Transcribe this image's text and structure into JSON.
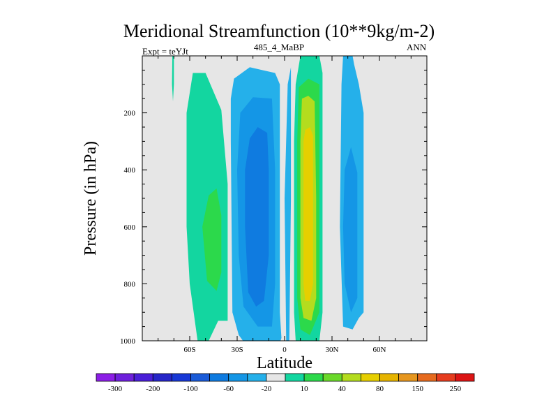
{
  "chart_data": {
    "type": "heatmap",
    "title": "Meridional Streamfunction (10**9kg/m-2)",
    "left_string": "Expt = teYJt",
    "center_string": "485_4_MaBP",
    "right_string": "ANN",
    "xlabel": "Latitude",
    "ylabel": "Pressure (in hPa)",
    "xlim": [
      -90,
      90
    ],
    "ylim": [
      1000,
      0
    ],
    "x_ticks": [
      {
        "value": -60,
        "label": "60S"
      },
      {
        "value": -30,
        "label": "30S"
      },
      {
        "value": 0,
        "label": "0"
      },
      {
        "value": 30,
        "label": "30N"
      },
      {
        "value": 60,
        "label": "60N"
      }
    ],
    "y_ticks": [
      {
        "value": 200,
        "label": "200"
      },
      {
        "value": 400,
        "label": "400"
      },
      {
        "value": 600,
        "label": "600"
      },
      {
        "value": 800,
        "label": "800"
      },
      {
        "value": 1000,
        "label": "1000"
      }
    ],
    "colorbar": {
      "colors": [
        "#8c1ee6",
        "#6e20dc",
        "#4a1fd8",
        "#2626c8",
        "#1838d6",
        "#1a5bd8",
        "#0f7be0",
        "#1496e6",
        "#25b0ea",
        "#e6e6e6",
        "#13d6a0",
        "#2cd94b",
        "#6ad92a",
        "#b4dc1e",
        "#e6cf00",
        "#e6b400",
        "#e6961e",
        "#e66a1e",
        "#e63c1e",
        "#dc1414"
      ],
      "labels": [
        "-300",
        "-200",
        "-100",
        "-60",
        "-20",
        "10",
        "40",
        "80",
        "150",
        "250"
      ]
    },
    "regions": [
      {
        "level": 10,
        "color": "#13d6a0",
        "name": "sh-positive-cell-edge",
        "points": [
          [
            -50,
            60
          ],
          [
            -40,
            190
          ],
          [
            -36,
            450
          ],
          [
            -36,
            930
          ],
          [
            -42,
            930
          ],
          [
            -48,
            1000
          ],
          [
            -55,
            1000
          ],
          [
            -60,
            800
          ],
          [
            -62,
            600
          ],
          [
            -62,
            200
          ],
          [
            -58,
            60
          ]
        ]
      },
      {
        "level": 40,
        "color": "#2cd94b",
        "name": "sh-positive-cell-core",
        "points": [
          [
            -43,
            465
          ],
          [
            -40,
            560
          ],
          [
            -40,
            760
          ],
          [
            -43,
            825
          ],
          [
            -49,
            790
          ],
          [
            -52,
            600
          ],
          [
            -48,
            490
          ]
        ]
      },
      {
        "level": -20,
        "color": "#25b0ea",
        "name": "sh-negative-cell-edge",
        "points": [
          [
            -32,
            80
          ],
          [
            -22,
            40
          ],
          [
            -6,
            60
          ],
          [
            -3,
            100
          ],
          [
            -3,
            900
          ],
          [
            -2,
            990
          ],
          [
            -4,
            1030
          ],
          [
            -15,
            1030
          ],
          [
            -25,
            1010
          ],
          [
            -29,
            980
          ],
          [
            -33,
            900
          ],
          [
            -34,
            300
          ],
          [
            -34,
            150
          ]
        ]
      },
      {
        "level": -60,
        "color": "#1496e6",
        "name": "sh-negative-cell-mid",
        "points": [
          [
            -28,
            200
          ],
          [
            -20,
            145
          ],
          [
            -8,
            150
          ],
          [
            -6,
            400
          ],
          [
            -6,
            800
          ],
          [
            -8,
            950
          ],
          [
            -17,
            950
          ],
          [
            -26,
            880
          ],
          [
            -29,
            700
          ],
          [
            -30,
            400
          ]
        ]
      },
      {
        "level": -100,
        "color": "#0f7be0",
        "name": "sh-negative-cell-core",
        "points": [
          [
            -22,
            290
          ],
          [
            -17,
            250
          ],
          [
            -11,
            270
          ],
          [
            -10,
            400
          ],
          [
            -10,
            700
          ],
          [
            -13,
            860
          ],
          [
            -18,
            880
          ],
          [
            -23,
            830
          ],
          [
            -25,
            600
          ],
          [
            -25,
            400
          ]
        ]
      },
      {
        "level": -20,
        "color": "#25b0ea",
        "name": "equatorial-negative-strip",
        "points": [
          [
            2,
            100
          ],
          [
            4,
            40
          ],
          [
            4,
            500
          ],
          [
            3,
            1000
          ],
          [
            1,
            1000
          ],
          [
            0,
            500
          ]
        ]
      },
      {
        "level": 10,
        "color": "#13d6a0",
        "name": "nh-positive-cell-edge",
        "points": [
          [
            7,
            100
          ],
          [
            10,
            0
          ],
          [
            22,
            0
          ],
          [
            24,
            60
          ],
          [
            24,
            300
          ],
          [
            24,
            900
          ],
          [
            22,
            1000
          ],
          [
            18,
            1020
          ],
          [
            9,
            1020
          ],
          [
            7,
            1000
          ],
          [
            6,
            900
          ],
          [
            6,
            300
          ]
        ]
      },
      {
        "level": 40,
        "color": "#2cd94b",
        "name": "nh-positive-cell-mid",
        "points": [
          [
            9,
            110
          ],
          [
            15,
            80
          ],
          [
            22,
            100
          ],
          [
            22,
            500
          ],
          [
            22,
            900
          ],
          [
            16,
            980
          ],
          [
            10,
            960
          ],
          [
            8,
            850
          ],
          [
            8,
            300
          ]
        ]
      },
      {
        "level": 80,
        "color": "#b4dc1e",
        "name": "nh-positive-cell-inner",
        "points": [
          [
            11,
            150
          ],
          [
            15,
            140
          ],
          [
            19,
            160
          ],
          [
            20,
            500
          ],
          [
            20,
            850
          ],
          [
            17,
            930
          ],
          [
            12,
            920
          ],
          [
            10,
            850
          ],
          [
            10,
            300
          ]
        ]
      },
      {
        "level": 150,
        "color": "#e6cf00",
        "name": "nh-positive-cell-core",
        "points": [
          [
            13,
            260
          ],
          [
            16,
            250
          ],
          [
            18,
            280
          ],
          [
            18,
            500
          ],
          [
            18,
            800
          ],
          [
            16,
            860
          ],
          [
            13,
            860
          ],
          [
            12,
            800
          ],
          [
            12,
            300
          ]
        ]
      },
      {
        "level": -20,
        "color": "#25b0ea",
        "name": "nh-negative-cell-edge",
        "points": [
          [
            37,
            0
          ],
          [
            43,
            0
          ],
          [
            44,
            30
          ],
          [
            47,
            100
          ],
          [
            50,
            200
          ],
          [
            50,
            500
          ],
          [
            50,
            900
          ],
          [
            47,
            920
          ],
          [
            43,
            960
          ],
          [
            37,
            950
          ],
          [
            35,
            600
          ],
          [
            36,
            100
          ]
        ]
      },
      {
        "level": -60,
        "color": "#1496e6",
        "name": "nh-negative-cell-core",
        "points": [
          [
            38,
            400
          ],
          [
            42,
            320
          ],
          [
            46,
            410
          ],
          [
            46,
            600
          ],
          [
            46,
            850
          ],
          [
            42,
            900
          ],
          [
            38,
            800
          ],
          [
            37,
            600
          ]
        ]
      },
      {
        "level": 10,
        "color": "#13d6a0",
        "name": "sh-polar-positive-sliver",
        "points": [
          [
            -71,
            0
          ],
          [
            -70,
            0
          ],
          [
            -70,
            100
          ],
          [
            -70.6,
            160
          ],
          [
            -71.2,
            100
          ]
        ]
      }
    ]
  }
}
